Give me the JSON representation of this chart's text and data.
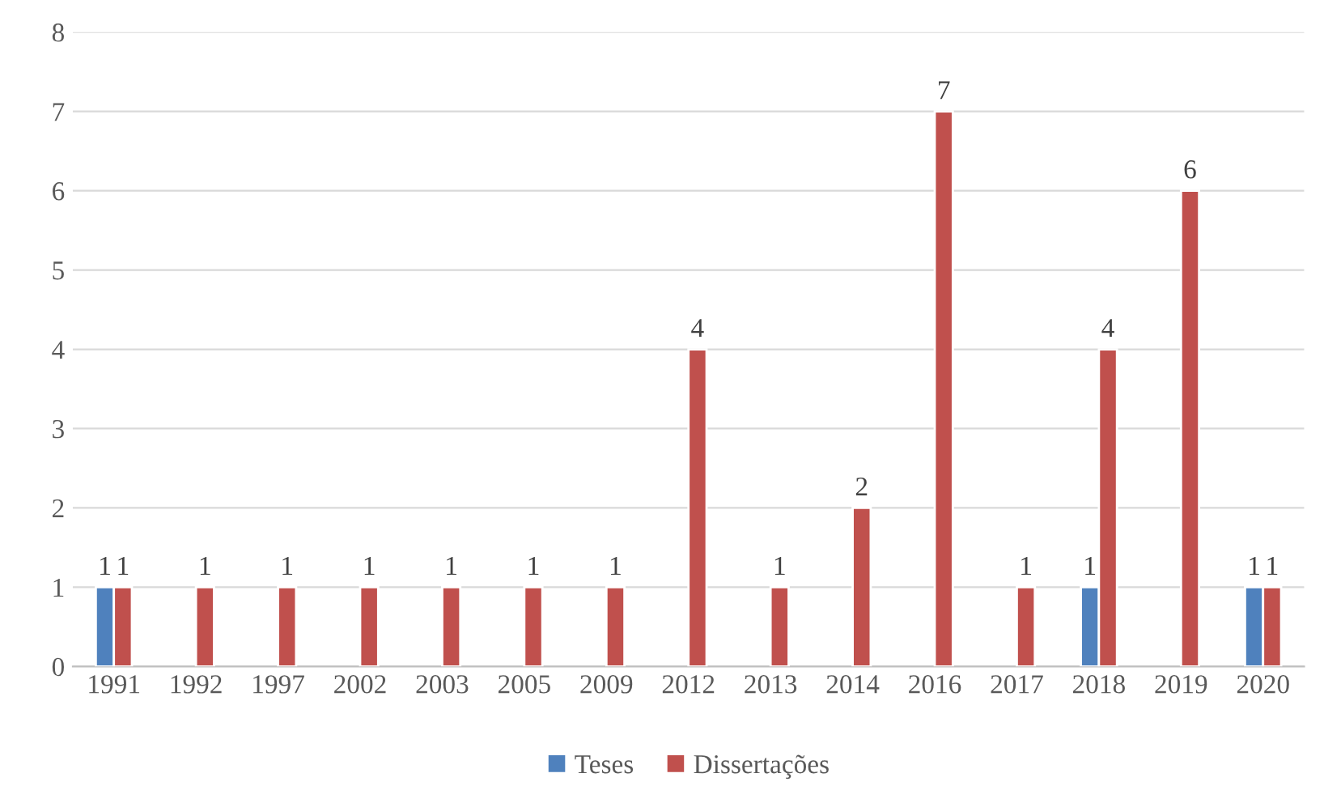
{
  "chart_data": {
    "type": "bar",
    "categories": [
      "1991",
      "1992",
      "1997",
      "2002",
      "2003",
      "2005",
      "2009",
      "2012",
      "2013",
      "2014",
      "2016",
      "2017",
      "2018",
      "2019",
      "2020"
    ],
    "series": [
      {
        "name": "Teses",
        "color": "#4f81bd",
        "values": [
          1,
          null,
          null,
          null,
          null,
          null,
          null,
          null,
          null,
          null,
          null,
          null,
          1,
          null,
          1
        ]
      },
      {
        "name": "Dissertações",
        "color": "#c0504d",
        "values": [
          1,
          1,
          1,
          1,
          1,
          1,
          1,
          4,
          1,
          2,
          7,
          1,
          4,
          6,
          1
        ]
      }
    ],
    "ylim": [
      0,
      8
    ],
    "yticks": [
      0,
      1,
      2,
      3,
      4,
      5,
      6,
      7,
      8
    ],
    "grid": "y",
    "legend": "bottom",
    "data_labels": true
  }
}
